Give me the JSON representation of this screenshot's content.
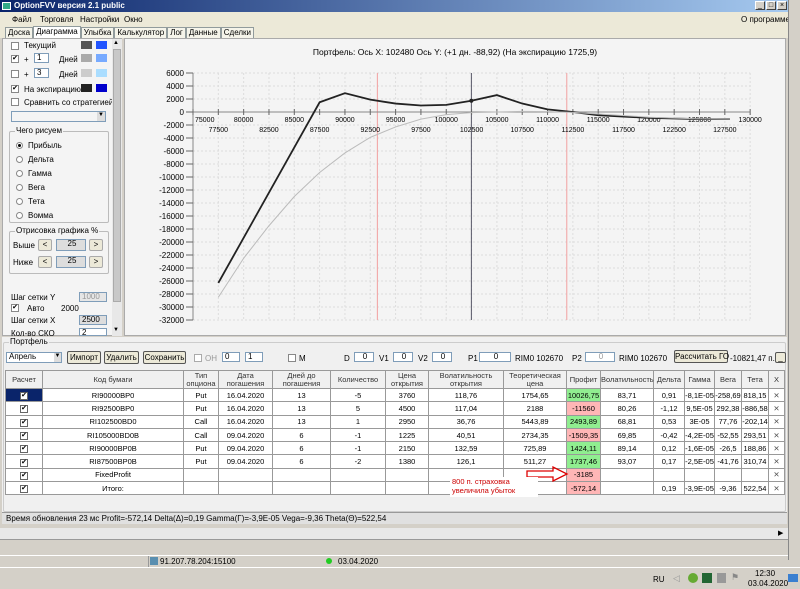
{
  "window": {
    "title": "OptionFVV версия 2.1 public",
    "min": "_",
    "max": "□",
    "close": "×"
  },
  "menu": {
    "items": [
      "Файл",
      "Торговля",
      "Настройки",
      "Окно"
    ],
    "about": "О программе"
  },
  "tabs": [
    {
      "label": "Доска"
    },
    {
      "label": "Диаграмма",
      "active": true
    },
    {
      "label": "Улыбка"
    },
    {
      "label": "Калькулятор"
    },
    {
      "label": "Лог"
    },
    {
      "label": "Данные"
    },
    {
      "label": "Сделки"
    }
  ],
  "left": {
    "current": {
      "label": "Текущий",
      "checked": false,
      "colors": [
        "#555555",
        "#2255ff"
      ]
    },
    "plus1": {
      "plus": "+",
      "days": "1",
      "unit": "Дней",
      "checked": true,
      "colors": [
        "#aaaaaa",
        "#77aaff"
      ]
    },
    "plus3": {
      "plus": "+",
      "days": "3",
      "unit": "Дней",
      "checked": false,
      "colors": [
        "#cccccc",
        "#aaddff"
      ]
    },
    "expiration": {
      "label": "На экспирацию",
      "checked": true,
      "colors": [
        "#222222",
        "#0000cc"
      ]
    },
    "compare": {
      "label": "Сравнить со стратегией",
      "checked": false
    },
    "strategy_select": "",
    "draw_group": {
      "title": "Чего рисуем",
      "options": [
        "Прибыль",
        "Дельта",
        "Гамма",
        "Вега",
        "Тета",
        "Вомма"
      ],
      "selected": 0
    },
    "range_group": {
      "title": "Отрисовка графика %",
      "above": "Выше",
      "below": "Ниже",
      "above_value": "25",
      "below_value": "25",
      "dec": "<",
      "inc": ">"
    },
    "grid_y": {
      "label": "Шаг сетки Y",
      "value": "1000"
    },
    "auto": {
      "label": "Авто",
      "checked": true,
      "value": "2000"
    },
    "grid_x": {
      "label": "Шаг сетки X",
      "value": "2500"
    },
    "sko": {
      "label": "Кол-во СКО",
      "value": "2"
    }
  },
  "chart_data": {
    "type": "line",
    "title": "Портфель: Ось X: 102480 Ось Y:  (+1 дн. -88,92)  (На экспирацию 1725,9)",
    "xlim": [
      75000,
      130000
    ],
    "ylim": [
      -32000,
      6000
    ],
    "x_ticks_major": [
      "75000",
      "80000",
      "85000",
      "90000",
      "95000",
      "100000",
      "105000",
      "110000",
      "115000",
      "120000",
      "125000",
      "130000"
    ],
    "x_ticks_minor": [
      "77500",
      "82500",
      "87500",
      "92500",
      "97500",
      "102500",
      "107500",
      "112500",
      "117500",
      "122500",
      "127500"
    ],
    "y_ticks": [
      "6000",
      "4000",
      "2000",
      "0",
      "-2000",
      "-4000",
      "-6000",
      "-8000",
      "-10000",
      "-12000",
      "-14000",
      "-16000",
      "-18000",
      "-20000",
      "-22000",
      "-24000",
      "-26000",
      "-28000",
      "-30000",
      "-32000"
    ],
    "grid": true,
    "cursor": {
      "x": 102480,
      "y": 1725.9
    },
    "vertical_lines": [
      93200,
      111900
    ],
    "series": [
      {
        "color": "#222222",
        "x": [
          77500,
          87500,
          90000,
          92500,
          95000,
          97500,
          100000,
          102480,
          105000,
          107500,
          110000,
          112500,
          115000,
          117500,
          120000,
          122500,
          125000,
          127500,
          128000
        ],
        "y": [
          -26300,
          1500,
          2900,
          1900,
          1300,
          1000,
          1100,
          1726,
          2600,
          1300,
          400,
          0,
          -500,
          -700,
          -900,
          -1000,
          -1100,
          -1100,
          -1100
        ]
      },
      {
        "color": "#bbbbbb",
        "x": [
          77500,
          80000,
          82500,
          85000,
          87500,
          90000,
          92500,
          95000,
          97500,
          100000,
          102480,
          105000,
          107500,
          110000,
          112500,
          115000,
          120000,
          125000,
          128000
        ],
        "y": [
          -28500,
          -22500,
          -17500,
          -13000,
          -9300,
          -6300,
          -3900,
          -2300,
          -1100,
          -400,
          -89,
          0,
          100,
          50,
          -50,
          -300,
          -800,
          -1050,
          -1100
        ]
      }
    ]
  },
  "portfolio": {
    "title": "Портфель",
    "month": "Апрель",
    "import": "Импорт",
    "delete": "Удалить",
    "save": "Сохранить",
    "oh": "ОН",
    "spin1": "0",
    "spin2": "1",
    "m": "М",
    "d_label": "D",
    "d": "0",
    "v1_label": "V1",
    "v1": "0",
    "v2_label": "V2",
    "v2": "0",
    "p1_label": "P1",
    "p1": "0",
    "rim1": "RIM0 102670",
    "p2_label": "P2",
    "p2": "0",
    "rim2": "RIM0 102670",
    "calc_go": "Рассчитать ГО",
    "go_value": "-10821,47 п.",
    "minimize": "_",
    "columns": [
      "Расчет",
      "Код бумаги",
      "Тип опциона",
      "Дата погашения",
      "Дней до погашения",
      "Количество",
      "Цена открытия",
      "Волатильность открытия",
      "Теоретическая цена",
      "Профит",
      "Волатильность",
      "Дельта",
      "Гамма",
      "Вега",
      "Тета",
      "X"
    ],
    "rows": [
      [
        "✔",
        "RI90000BP0",
        "Put",
        "16.04.2020",
        "13",
        "-5",
        "3760",
        "118,76",
        "1754,65",
        "10026,75",
        "83,71",
        "0,91",
        "-8,1E-05",
        "-258,69",
        "818,15",
        "✕"
      ],
      [
        "✔",
        "RI92500BP0",
        "Put",
        "16.04.2020",
        "13",
        "5",
        "4500",
        "117,04",
        "2188",
        "-11560",
        "80,26",
        "-1,12",
        "9,5E-05",
        "292,38",
        "-886,58",
        "✕"
      ],
      [
        "✔",
        "RI102500BD0",
        "Call",
        "16.04.2020",
        "13",
        "1",
        "2950",
        "36,76",
        "5443,89",
        "2493,89",
        "68,81",
        "0,53",
        "3E-05",
        "77,76",
        "-202,14",
        "✕"
      ],
      [
        "✔",
        "RI105000BD0B",
        "Call",
        "09.04.2020",
        "6",
        "-1",
        "1225",
        "40,51",
        "2734,35",
        "-1509,35",
        "69,85",
        "-0,42",
        "-4,2E-05",
        "-52,55",
        "293,51",
        "✕"
      ],
      [
        "✔",
        "RI90000BP0B",
        "Put",
        "09.04.2020",
        "6",
        "-1",
        "2150",
        "132,59",
        "725,89",
        "1424,11",
        "89,14",
        "0,12",
        "-1,6E-05",
        "-26,5",
        "188,86",
        "✕"
      ],
      [
        "✔",
        "RI87500BP0B",
        "Put",
        "09.04.2020",
        "6",
        "-2",
        "1380",
        "126,1",
        "511,27",
        "1737,46",
        "93,07",
        "0,17",
        "-2,5E-05",
        "-41,76",
        "310,74",
        "✕"
      ],
      [
        "✔",
        "FixedProfit",
        "",
        "",
        "",
        "",
        "",
        "",
        "",
        "-3185",
        "",
        "",
        "",
        "",
        "",
        "✕"
      ],
      [
        "✔",
        "Итого:",
        "",
        "",
        "",
        "",
        "",
        "",
        "",
        "-572,14",
        "",
        "0,19",
        "-3,9E-05",
        "-9,36",
        "522,54",
        "✕"
      ]
    ],
    "note": [
      "800 п. страховка",
      "увеличила убыток"
    ],
    "colors": {
      "positive": "#90ee90",
      "negative": "#ffb6b6",
      "note": "#cc0000"
    }
  },
  "status": "Время обновления 23 мс  Profit=-572,14 Delta(Δ)=0,19 Gamma(Γ)=-3,9E-05 Vega=-9,36 Theta(Θ)=522,54",
  "bottom": {
    "server": "91.207.78.204:15100",
    "date": "03.04.2020"
  },
  "taskbar": {
    "lang": "RU",
    "time": "12:30",
    "date": "03.04.2020"
  }
}
